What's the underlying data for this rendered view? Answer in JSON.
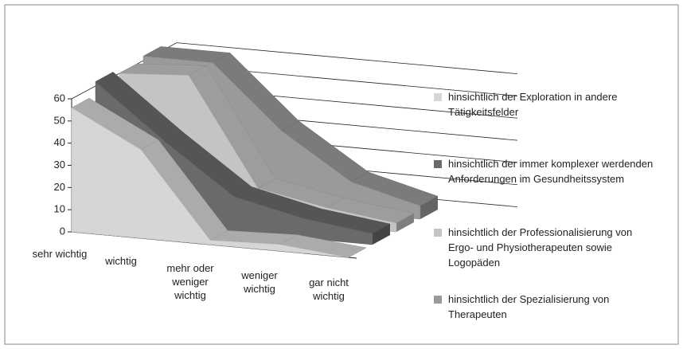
{
  "chart_data": {
    "type": "ribbon3d",
    "categories": [
      "sehr wichtig",
      "wichtig",
      "mehr oder weniger wichtig",
      "weniger wichtig",
      "gar nicht wichtig"
    ],
    "series": [
      {
        "name": "hinsichtlich der Exploration in andere Tätigkeitsfelder",
        "color": "#d6d6d6",
        "values": [
          56,
          40,
          2,
          3,
          0
        ]
      },
      {
        "name": "hinsichtlich der immer komplexer werdenden Anforderungen im Gesundheitssystem",
        "color": "#6a6a6a",
        "values": [
          62,
          38,
          16,
          9,
          5
        ]
      },
      {
        "name": "hinsichtlich der Professionalisierung von Ergo- und Physiotherapeuten sowie Logopäden",
        "color": "#c4c4c4",
        "values": [
          60,
          62,
          14,
          8,
          4
        ]
      },
      {
        "name": "hinsichtlich der Spezialisierung von Therapeuten",
        "color": "#9a9a9a",
        "values": [
          62,
          62,
          34,
          14,
          6
        ]
      }
    ],
    "ylim": [
      0,
      60
    ],
    "yticks": [
      0,
      10,
      20,
      30,
      40,
      50,
      60
    ],
    "grid": true
  }
}
